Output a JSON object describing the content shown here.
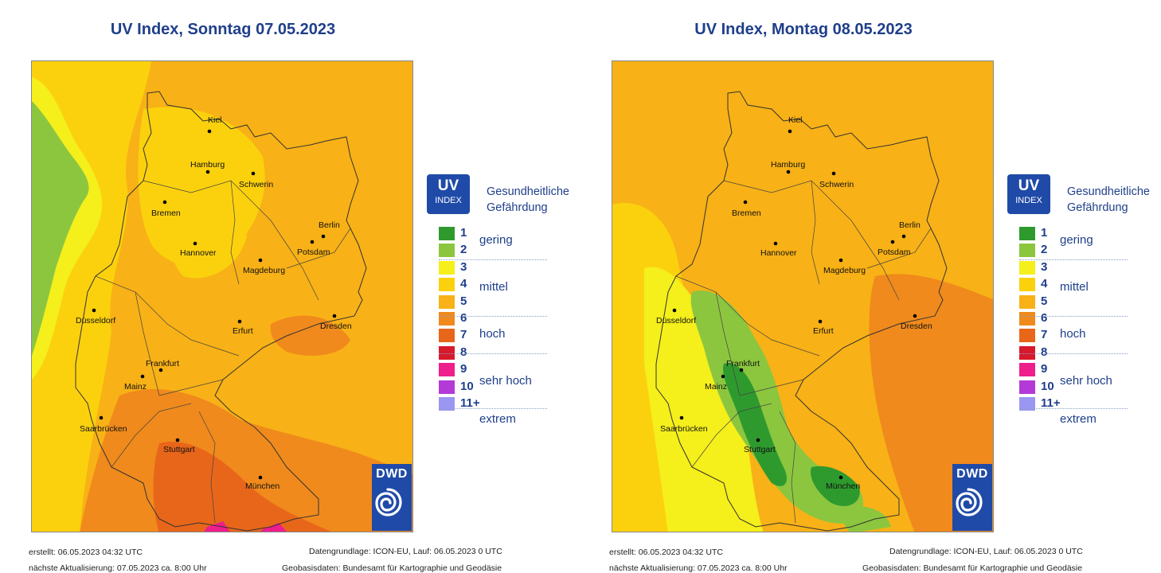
{
  "panels": [
    {
      "title": "UV Index, Sonntag 07.05.2023",
      "footer": {
        "created": "erstellt: 06.05.2023 04:32 UTC",
        "next_update": "nächste Aktualisierung:  07.05.2023 ca. 8:00 Uhr",
        "data_basis": "Datengrundlage: ICON-EU, Lauf: 06.05.2023 0 UTC",
        "geo_basis": "Geobasisdaten: Bundesamt für Kartographie und Geodäsie"
      }
    },
    {
      "title": "UV Index, Montag 08.05.2023",
      "footer": {
        "created": "erstellt: 06.05.2023 04:32 UTC",
        "next_update": "nächste Aktualisierung:  07.05.2023 ca. 8:00 Uhr",
        "data_basis": "Datengrundlage: ICON-EU, Lauf: 06.05.2023 0 UTC",
        "geo_basis": "Geobasisdaten: Bundesamt für Kartographie und Geodäsie"
      }
    }
  ],
  "legend": {
    "badge_big": "UV",
    "badge_small": "INDEX",
    "title_line1": "Gesundheitliche",
    "title_line2": "Gefährdung",
    "levels": [
      {
        "label": "1",
        "color": "#2e9a2e"
      },
      {
        "label": "2",
        "color": "#8cc63f"
      },
      {
        "label": "3",
        "color": "#f5ef1b"
      },
      {
        "label": "4",
        "color": "#fbd10e"
      },
      {
        "label": "5",
        "color": "#f8b116"
      },
      {
        "label": "6",
        "color": "#f08a1c"
      },
      {
        "label": "7",
        "color": "#e8661a"
      },
      {
        "label": "8",
        "color": "#d7192c"
      },
      {
        "label": "9",
        "color": "#ee1e8c"
      },
      {
        "label": "10",
        "color": "#b43ad8"
      },
      {
        "label": "11+",
        "color": "#9b96f2"
      }
    ],
    "categories": [
      "gering",
      "mittel",
      "hoch",
      "sehr hoch",
      "extrem"
    ]
  },
  "cities": [
    "Kiel",
    "Hamburg",
    "Schwerin",
    "Bremen",
    "Berlin",
    "Potsdam",
    "Hannover",
    "Magdeburg",
    "Düsseldorf",
    "Erfurt",
    "Dresden",
    "Frankfurt",
    "Mainz",
    "Saarbrücken",
    "Stuttgart",
    "München"
  ],
  "logo": {
    "text": "DWD"
  }
}
